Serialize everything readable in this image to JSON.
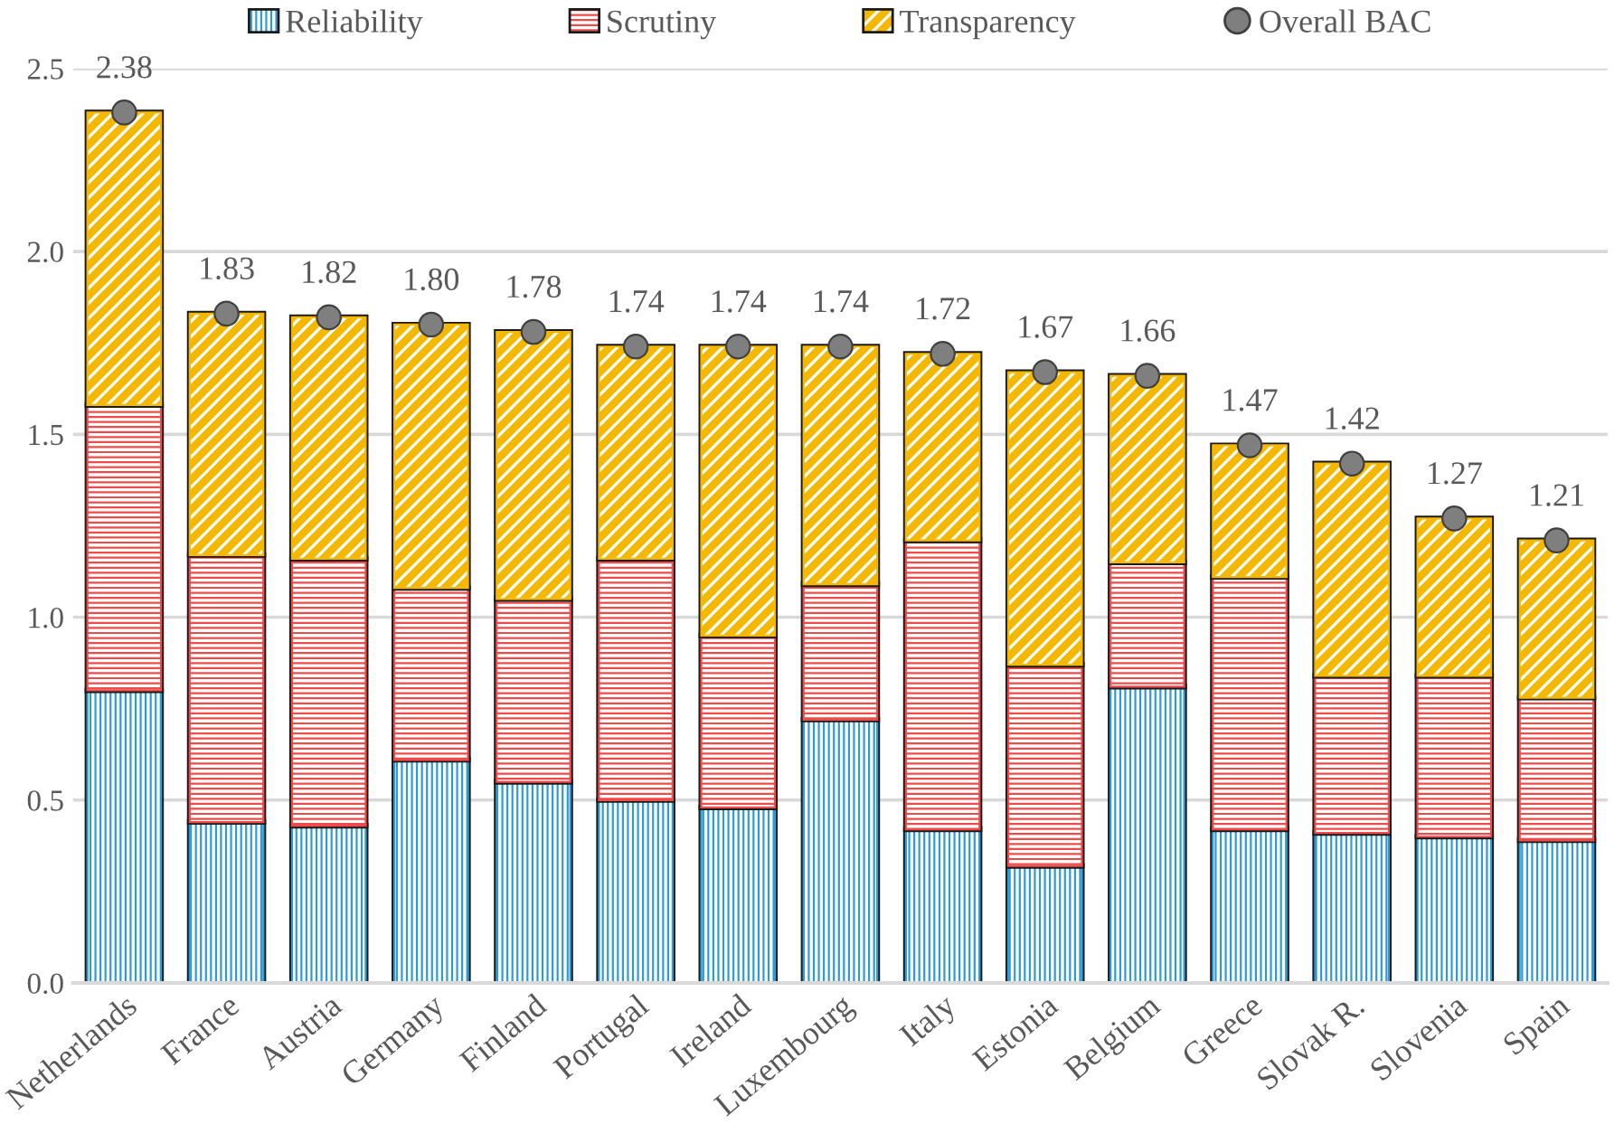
{
  "chart_data": {
    "type": "bar",
    "stacked": true,
    "categories": [
      "Netherlands",
      "France",
      "Austria",
      "Germany",
      "Finland",
      "Portugal",
      "Ireland",
      "Luxembourg",
      "Italy",
      "Estonia",
      "Belgium",
      "Greece",
      "Slovak R.",
      "Slovenia",
      "Spain"
    ],
    "series": [
      {
        "name": "Reliability",
        "color": "#2e9bd6",
        "values": [
          0.8,
          0.44,
          0.43,
          0.61,
          0.55,
          0.5,
          0.48,
          0.72,
          0.42,
          0.32,
          0.81,
          0.42,
          0.41,
          0.4,
          0.39
        ]
      },
      {
        "name": "Scrutiny",
        "color": "#ee4b4b",
        "values": [
          0.78,
          0.73,
          0.73,
          0.47,
          0.5,
          0.66,
          0.47,
          0.37,
          0.79,
          0.55,
          0.34,
          0.69,
          0.43,
          0.44,
          0.39
        ]
      },
      {
        "name": "Transparency",
        "color": "#f5b800",
        "values": [
          0.8,
          0.66,
          0.66,
          0.72,
          0.73,
          0.58,
          0.79,
          0.65,
          0.51,
          0.8,
          0.51,
          0.36,
          0.58,
          0.43,
          0.43
        ]
      },
      {
        "name": "Overall BAC",
        "type": "scatter",
        "color": "#7f7f7f",
        "marker": "circle",
        "values": [
          2.38,
          1.83,
          1.82,
          1.8,
          1.78,
          1.74,
          1.74,
          1.74,
          1.72,
          1.67,
          1.66,
          1.47,
          1.42,
          1.27,
          1.21
        ],
        "value_labels": [
          "2.38",
          "1.83",
          "1.82",
          "1.80",
          "1.78",
          "1.74",
          "1.74",
          "1.74",
          "1.72",
          "1.67",
          "1.66",
          "1.47",
          "1.42",
          "1.27",
          "1.21"
        ]
      }
    ],
    "ylim": [
      0,
      2.5
    ],
    "yticks": [
      {
        "value": 0,
        "label": "0.0"
      },
      {
        "value": 0.5,
        "label": "0.5"
      },
      {
        "value": 1,
        "label": "1.0"
      },
      {
        "value": 1.5,
        "label": "1.5"
      },
      {
        "value": 2,
        "label": "2.0"
      },
      {
        "value": 2.5,
        "label": "2.5"
      }
    ],
    "grid": "y",
    "legend": "top"
  }
}
